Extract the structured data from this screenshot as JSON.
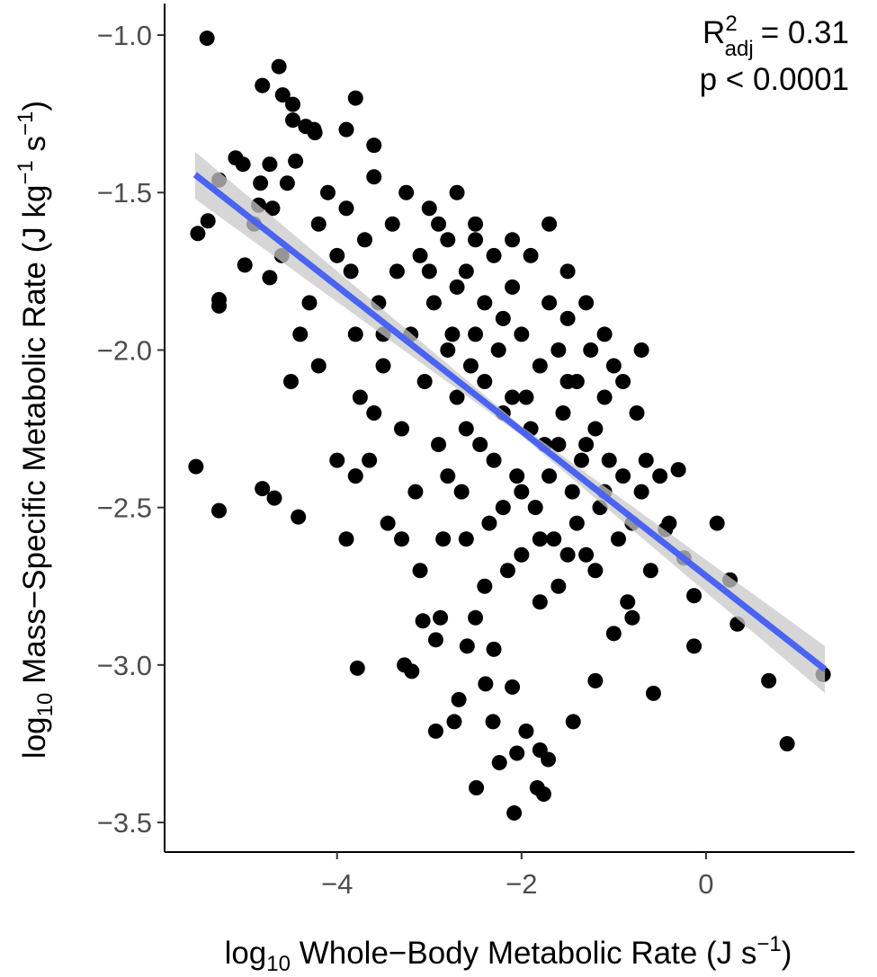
{
  "chart_data": {
    "type": "scatter",
    "x_label": [
      "log",
      "10",
      " Whole−Body Metabolic Rate (J s",
      "−1",
      ")"
    ],
    "y_label": [
      "log",
      "10",
      " Mass−Specific Metabolic Rate (J kg",
      "−1",
      " s",
      "−1",
      ")"
    ],
    "annotation": {
      "r": "R",
      "r_sup": "2",
      "r_sub": "adj",
      "r_value": "= 0.31",
      "p": "p < 0.0001"
    },
    "xlim": [
      -5.87,
      1.61
    ],
    "ylim": [
      -3.594,
      -0.9
    ],
    "xticks": [
      {
        "value": -4,
        "label": "−4"
      },
      {
        "value": -2,
        "label": "−2"
      },
      {
        "value": 0,
        "label": "0"
      }
    ],
    "yticks": [
      {
        "value": -3.5,
        "label": "−3.5"
      },
      {
        "value": -3,
        "label": "−3.0"
      },
      {
        "value": -2.5,
        "label": "−2.5"
      },
      {
        "value": -2,
        "label": "−2.0"
      },
      {
        "value": -1.5,
        "label": "−1.5"
      },
      {
        "value": -1,
        "label": "−1.0"
      }
    ],
    "point_color": "#000000",
    "fit_color": "#4a63f0",
    "band_color": "#c8c8c8",
    "fit": {
      "x": [
        -5.54,
        -2.0,
        1.29
      ],
      "y": [
        -1.443,
        -2.257,
        -3.014
      ],
      "ci_lower": [
        -1.52,
        -2.272,
        -3.09
      ],
      "ci_upper": [
        -1.37,
        -2.242,
        -2.94
      ]
    },
    "x": [
      -5.53,
      -5.28,
      -5.51,
      -5.28,
      -5.28,
      -5.4,
      -5.28,
      -5.1,
      -5.02,
      -4.73,
      -4.81,
      -4.63,
      -4.59,
      -4.48,
      -4.48,
      -4.34,
      -4.24,
      -5.0,
      -4.81,
      -4.68,
      -4.42,
      -4.83,
      -4.85,
      -4.54,
      -4.73,
      -5.41,
      1.27,
      0.88,
      0.68,
      0.34,
      0.26,
      0.12,
      -0.13,
      -0.13,
      -0.57,
      -0.24,
      -0.44,
      -2.08,
      -2.49,
      -2.05,
      -1.95,
      -1.8,
      -1.71,
      -1.83,
      -1.76,
      -2.24,
      -2.31,
      -1.44,
      -2.73,
      -2.93,
      -2.68,
      -2.39,
      -2.1,
      -1.2,
      -3.78,
      -3.27,
      -3.19,
      -3.07,
      -2.93,
      -2.59,
      -2.88,
      -3.9,
      -3.85,
      -3.8,
      -3.75,
      -3.7,
      -3.65,
      -3.6,
      -3.55,
      -3.5,
      -3.45,
      -3.4,
      -3.35,
      -3.3,
      -3.25,
      -3.2,
      -3.15,
      -3.1,
      -3.05,
      -3.0,
      -2.95,
      -2.9,
      -2.85,
      -2.8,
      -2.75,
      -2.7,
      -2.65,
      -2.6,
      -2.55,
      -2.5,
      -2.45,
      -2.4,
      -2.35,
      -2.3,
      -2.25,
      -2.2,
      -2.15,
      -2.1,
      -2.05,
      -2.0,
      -1.95,
      -1.9,
      -1.85,
      -1.8,
      -1.75,
      -1.7,
      -1.65,
      -1.6,
      -1.55,
      -1.5,
      -1.45,
      -1.4,
      -1.35,
      -1.3,
      -1.25,
      -1.2,
      -1.15,
      -1.1,
      -1.05,
      -1.0,
      -0.95,
      -0.9,
      -0.85,
      -0.8,
      -0.75,
      -0.7,
      -0.65,
      -0.6,
      -0.5,
      -0.4,
      -0.3,
      -3.0,
      -2.9,
      -2.8,
      -2.7,
      -2.6,
      -2.5,
      -2.4,
      -2.3,
      -2.2,
      -2.1,
      -2.0,
      -1.9,
      -1.8,
      -1.7,
      -1.6,
      -1.5,
      -1.4,
      -1.3,
      -1.2,
      -1.1,
      -2.6,
      -2.4,
      -2.2,
      -2.0,
      -1.8,
      -1.6,
      -2.8,
      -3.1,
      -3.3,
      -2.5,
      -2.3,
      -1.5,
      -1.0,
      -0.8,
      -2.7,
      -2.5,
      -2.1,
      -1.7,
      -1.5,
      -1.3,
      -1.1,
      -0.9,
      -0.7,
      -3.5,
      -3.6,
      -3.8,
      -4.0,
      -4.1,
      -4.2,
      -4.3,
      -4.4,
      -4.5,
      -4.2,
      -4.0,
      -3.9,
      -4.6,
      -4.7,
      -4.9,
      -4.45,
      -4.25,
      -3.9,
      -3.8,
      -3.6
    ],
    "y": [
      -2.37,
      -2.51,
      -1.63,
      -1.84,
      -1.86,
      -1.59,
      -1.46,
      -1.39,
      -1.41,
      -1.41,
      -1.16,
      -1.1,
      -1.19,
      -1.22,
      -1.27,
      -1.29,
      -1.31,
      -1.73,
      -2.44,
      -2.47,
      -2.53,
      -1.47,
      -1.54,
      -1.47,
      -1.77,
      -1.01,
      -3.03,
      -3.25,
      -3.05,
      -2.87,
      -2.73,
      -2.55,
      -2.78,
      -2.94,
      -3.09,
      -2.66,
      -2.57,
      -3.47,
      -3.39,
      -3.28,
      -3.21,
      -3.27,
      -3.3,
      -3.39,
      -3.41,
      -3.31,
      -3.18,
      -3.18,
      -3.18,
      -3.21,
      -3.11,
      -3.06,
      -3.07,
      -3.05,
      -3.01,
      -3.0,
      -3.02,
      -2.86,
      -2.92,
      -2.94,
      -2.85,
      -1.55,
      -1.75,
      -1.95,
      -2.15,
      -1.65,
      -2.35,
      -1.45,
      -1.85,
      -2.05,
      -2.55,
      -1.6,
      -1.75,
      -2.25,
      -1.5,
      -1.95,
      -2.45,
      -1.7,
      -2.1,
      -1.55,
      -1.85,
      -2.3,
      -2.6,
      -1.65,
      -1.95,
      -2.15,
      -2.45,
      -1.75,
      -2.05,
      -1.6,
      -2.3,
      -1.85,
      -2.55,
      -1.7,
      -2.0,
      -2.2,
      -2.7,
      -1.8,
      -2.4,
      -1.95,
      -2.15,
      -1.7,
      -2.5,
      -2.05,
      -2.3,
      -1.85,
      -2.6,
      -2.0,
      -2.2,
      -1.9,
      -2.45,
      -2.1,
      -2.35,
      -2.65,
      -2.0,
      -2.25,
      -2.5,
      -2.15,
      -2.35,
      -2.05,
      -2.6,
      -2.4,
      -2.8,
      -2.55,
      -2.2,
      -2.45,
      -2.35,
      -2.7,
      -2.4,
      -2.55,
      -2.38,
      -1.75,
      -1.6,
      -2.0,
      -1.8,
      -2.25,
      -1.95,
      -2.1,
      -2.35,
      -1.9,
      -2.15,
      -2.45,
      -2.25,
      -2.6,
      -2.4,
      -2.3,
      -2.1,
      -2.55,
      -2.3,
      -2.7,
      -2.45,
      -2.6,
      -2.75,
      -2.5,
      -2.65,
      -2.8,
      -2.75,
      -2.4,
      -2.7,
      -2.6,
      -2.85,
      -2.95,
      -2.65,
      -2.9,
      -2.85,
      -1.5,
      -1.65,
      -1.65,
      -1.6,
      -1.75,
      -1.85,
      -1.95,
      -2.1,
      -2.0,
      -1.95,
      -2.2,
      -2.4,
      -1.7,
      -1.5,
      -1.6,
      -1.85,
      -1.95,
      -2.1,
      -2.05,
      -2.35,
      -2.6,
      -1.7,
      -1.55,
      -1.6,
      -1.4,
      -1.3,
      -1.3,
      -1.2,
      -1.35
    ]
  }
}
